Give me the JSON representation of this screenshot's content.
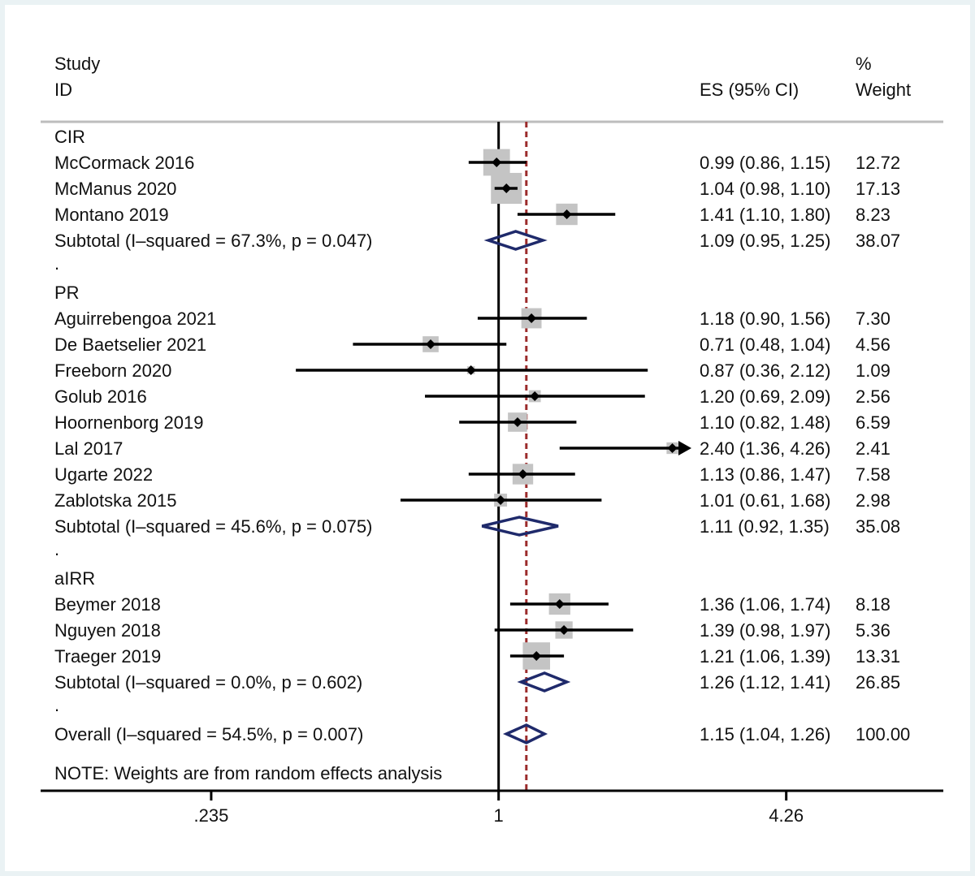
{
  "chart_data": {
    "type": "forest",
    "header": {
      "study_label": "Study",
      "id_label": "ID",
      "es_label": "ES (95% CI)",
      "pct_label": "%",
      "weight_label": "Weight"
    },
    "x_scale": "log",
    "xlim": [
      0.0995,
      9.4
    ],
    "ticks": [
      {
        "value": 0.235,
        "label": ".235"
      },
      {
        "value": 1,
        "label": "1"
      },
      {
        "value": 4.26,
        "label": "4.26"
      }
    ],
    "null_line": 1,
    "overall_line": 1.15,
    "groups": [
      {
        "name": "CIR",
        "studies": [
          {
            "study": "McCormack 2016",
            "es": 0.99,
            "lo": 0.86,
            "hi": 1.15,
            "es_text": "0.99 (0.86, 1.15)",
            "weight": 12.72,
            "weight_text": "12.72"
          },
          {
            "study": "McManus 2020",
            "es": 1.04,
            "lo": 0.98,
            "hi": 1.1,
            "es_text": "1.04 (0.98, 1.10)",
            "weight": 17.13,
            "weight_text": "17.13"
          },
          {
            "study": "Montano 2019",
            "es": 1.41,
            "lo": 1.1,
            "hi": 1.8,
            "es_text": "1.41 (1.10, 1.80)",
            "weight": 8.23,
            "weight_text": "8.23"
          }
        ],
        "subtotal": {
          "label": "Subtotal  (I–squared = 67.3%, p = 0.047)",
          "es": 1.09,
          "lo": 0.95,
          "hi": 1.25,
          "es_text": "1.09 (0.95, 1.25)",
          "weight_text": "38.07"
        }
      },
      {
        "name": "PR",
        "studies": [
          {
            "study": "Aguirrebengoa 2021",
            "es": 1.18,
            "lo": 0.9,
            "hi": 1.56,
            "es_text": "1.18 (0.90, 1.56)",
            "weight": 7.3,
            "weight_text": "7.30"
          },
          {
            "study": "De Baetselier 2021",
            "es": 0.71,
            "lo": 0.48,
            "hi": 1.04,
            "es_text": "0.71 (0.48, 1.04)",
            "weight": 4.56,
            "weight_text": "4.56"
          },
          {
            "study": "Freeborn 2020",
            "es": 0.87,
            "lo": 0.36,
            "hi": 2.12,
            "es_text": "0.87 (0.36, 2.12)",
            "weight": 1.09,
            "weight_text": "1.09"
          },
          {
            "study": "Golub 2016",
            "es": 1.2,
            "lo": 0.69,
            "hi": 2.09,
            "es_text": "1.20 (0.69, 2.09)",
            "weight": 2.56,
            "weight_text": "2.56"
          },
          {
            "study": "Hoornenborg 2019",
            "es": 1.1,
            "lo": 0.82,
            "hi": 1.48,
            "es_text": "1.10 (0.82, 1.48)",
            "weight": 6.59,
            "weight_text": "6.59"
          },
          {
            "study": "Lal 2017",
            "es": 2.4,
            "lo": 1.36,
            "hi": 4.26,
            "es_text": "2.40 (1.36, 4.26)",
            "weight": 2.41,
            "weight_text": "2.41",
            "arrow": true
          },
          {
            "study": "Ugarte 2022",
            "es": 1.13,
            "lo": 0.86,
            "hi": 1.47,
            "es_text": "1.13 (0.86, 1.47)",
            "weight": 7.58,
            "weight_text": "7.58"
          },
          {
            "study": "Zablotska 2015",
            "es": 1.01,
            "lo": 0.61,
            "hi": 1.68,
            "es_text": "1.01 (0.61, 1.68)",
            "weight": 2.98,
            "weight_text": "2.98"
          }
        ],
        "subtotal": {
          "label": "Subtotal  (I–squared = 45.6%, p = 0.075)",
          "es": 1.11,
          "lo": 0.92,
          "hi": 1.35,
          "es_text": "1.11 (0.92, 1.35)",
          "weight_text": "35.08"
        }
      },
      {
        "name": "aIRR",
        "studies": [
          {
            "study": "Beymer 2018",
            "es": 1.36,
            "lo": 1.06,
            "hi": 1.74,
            "es_text": "1.36 (1.06, 1.74)",
            "weight": 8.18,
            "weight_text": "8.18"
          },
          {
            "study": "Nguyen 2018",
            "es": 1.39,
            "lo": 0.98,
            "hi": 1.97,
            "es_text": "1.39 (0.98, 1.97)",
            "weight": 5.36,
            "weight_text": "5.36"
          },
          {
            "study": "Traeger 2019",
            "es": 1.21,
            "lo": 1.06,
            "hi": 1.39,
            "es_text": "1.21 (1.06, 1.39)",
            "weight": 13.31,
            "weight_text": "13.31"
          }
        ],
        "subtotal": {
          "label": "Subtotal  (I–squared = 0.0%, p = 0.602)",
          "es": 1.26,
          "lo": 1.12,
          "hi": 1.41,
          "es_text": "1.26 (1.12, 1.41)",
          "weight_text": "26.85"
        }
      }
    ],
    "overall": {
      "label": "Overall  (I–squared = 54.5%, p = 0.007)",
      "es": 1.15,
      "lo": 1.04,
      "hi": 1.26,
      "es_text": "1.15 (1.04, 1.26)",
      "weight_text": "100.00"
    },
    "separator": ".",
    "note": "NOTE: Weights are from random effects analysis",
    "colors": {
      "study_box": "#c4c4c4",
      "diamond": "#1f2a6b",
      "overall_line": "#9b2b2b",
      "ci_line": "#000000",
      "rule": "#bdbdbd"
    }
  }
}
